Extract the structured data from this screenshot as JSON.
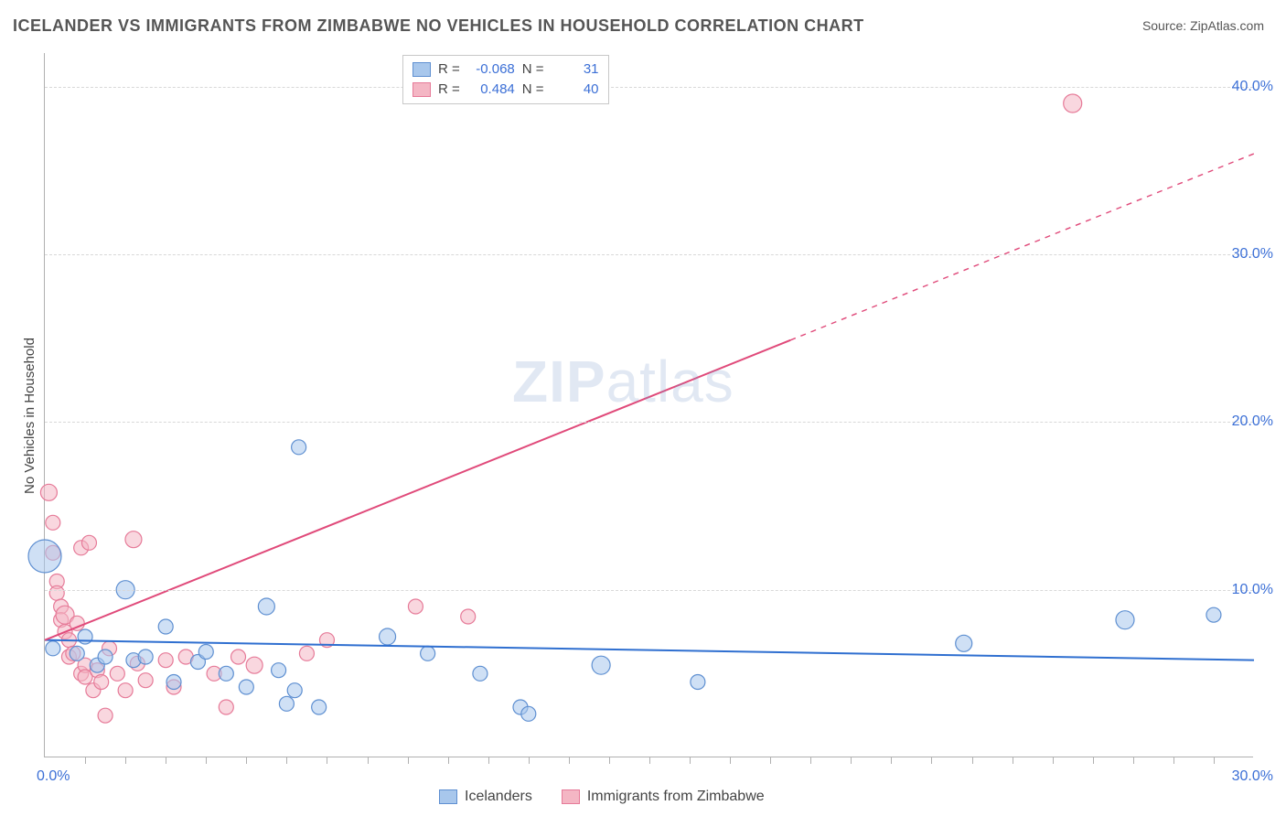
{
  "title": "ICELANDER VS IMMIGRANTS FROM ZIMBABWE NO VEHICLES IN HOUSEHOLD CORRELATION CHART",
  "source": "Source: ZipAtlas.com",
  "ylabel": "No Vehicles in Household",
  "watermark_zip": "ZIP",
  "watermark_atlas": "atlas",
  "chart": {
    "type": "scatter",
    "xlim": [
      0,
      30
    ],
    "ylim": [
      0,
      42
    ],
    "x_tick_first": "0.0%",
    "x_tick_last": "30.0%",
    "x_minor_ticks": [
      1,
      2,
      3,
      4,
      5,
      6,
      7,
      8,
      9,
      10,
      11,
      12,
      13,
      14,
      15,
      16,
      17,
      18,
      19,
      20,
      21,
      22,
      23,
      24,
      25,
      26,
      27,
      28,
      29
    ],
    "y_ticks": [
      {
        "v": 10,
        "label": "10.0%"
      },
      {
        "v": 20,
        "label": "20.0%"
      },
      {
        "v": 30,
        "label": "30.0%"
      },
      {
        "v": 40,
        "label": "40.0%"
      }
    ],
    "series": [
      {
        "name": "Icelanders",
        "color_fill": "#a8c7ec",
        "color_stroke": "#5e8fd1",
        "fill_opacity": 0.55,
        "r_label": "-0.068",
        "n_label": "31",
        "trend": {
          "x1": 0,
          "y1": 7.0,
          "x2": 30,
          "y2": 5.8,
          "color": "#2f6fd0",
          "width": 2
        },
        "points": [
          {
            "x": 0.0,
            "y": 12.0,
            "r": 18
          },
          {
            "x": 0.2,
            "y": 6.5,
            "r": 8
          },
          {
            "x": 0.8,
            "y": 6.2,
            "r": 8
          },
          {
            "x": 1.0,
            "y": 7.2,
            "r": 8
          },
          {
            "x": 1.3,
            "y": 5.5,
            "r": 8
          },
          {
            "x": 1.5,
            "y": 6.0,
            "r": 8
          },
          {
            "x": 2.0,
            "y": 10.0,
            "r": 10
          },
          {
            "x": 2.2,
            "y": 5.8,
            "r": 8
          },
          {
            "x": 2.5,
            "y": 6.0,
            "r": 8
          },
          {
            "x": 3.0,
            "y": 7.8,
            "r": 8
          },
          {
            "x": 3.2,
            "y": 4.5,
            "r": 8
          },
          {
            "x": 3.8,
            "y": 5.7,
            "r": 8
          },
          {
            "x": 4.0,
            "y": 6.3,
            "r": 8
          },
          {
            "x": 4.5,
            "y": 5.0,
            "r": 8
          },
          {
            "x": 5.0,
            "y": 4.2,
            "r": 8
          },
          {
            "x": 5.5,
            "y": 9.0,
            "r": 9
          },
          {
            "x": 5.8,
            "y": 5.2,
            "r": 8
          },
          {
            "x": 6.0,
            "y": 3.2,
            "r": 8
          },
          {
            "x": 6.2,
            "y": 4.0,
            "r": 8
          },
          {
            "x": 6.3,
            "y": 18.5,
            "r": 8
          },
          {
            "x": 6.8,
            "y": 3.0,
            "r": 8
          },
          {
            "x": 8.5,
            "y": 7.2,
            "r": 9
          },
          {
            "x": 9.5,
            "y": 6.2,
            "r": 8
          },
          {
            "x": 10.8,
            "y": 5.0,
            "r": 8
          },
          {
            "x": 11.8,
            "y": 3.0,
            "r": 8
          },
          {
            "x": 12.0,
            "y": 2.6,
            "r": 8
          },
          {
            "x": 13.8,
            "y": 5.5,
            "r": 10
          },
          {
            "x": 16.2,
            "y": 4.5,
            "r": 8
          },
          {
            "x": 22.8,
            "y": 6.8,
            "r": 9
          },
          {
            "x": 26.8,
            "y": 8.2,
            "r": 10
          },
          {
            "x": 29.0,
            "y": 8.5,
            "r": 8
          }
        ]
      },
      {
        "name": "Immigrants from Zimbabwe",
        "color_fill": "#f4b6c4",
        "color_stroke": "#e67a98",
        "fill_opacity": 0.55,
        "r_label": "0.484",
        "n_label": "40",
        "trend": {
          "x1": 0,
          "y1": 7.0,
          "x2": 30,
          "y2": 36.0,
          "solid_until_x": 18.5,
          "color": "#e04a7a",
          "width": 2
        },
        "points": [
          {
            "x": 0.1,
            "y": 15.8,
            "r": 9
          },
          {
            "x": 0.2,
            "y": 14.0,
            "r": 8
          },
          {
            "x": 0.2,
            "y": 12.2,
            "r": 8
          },
          {
            "x": 0.3,
            "y": 10.5,
            "r": 8
          },
          {
            "x": 0.3,
            "y": 9.8,
            "r": 8
          },
          {
            "x": 0.4,
            "y": 9.0,
            "r": 8
          },
          {
            "x": 0.4,
            "y": 8.2,
            "r": 8
          },
          {
            "x": 0.5,
            "y": 8.5,
            "r": 10
          },
          {
            "x": 0.5,
            "y": 7.5,
            "r": 8
          },
          {
            "x": 0.6,
            "y": 7.0,
            "r": 8
          },
          {
            "x": 0.6,
            "y": 6.0,
            "r": 8
          },
          {
            "x": 0.7,
            "y": 6.2,
            "r": 8
          },
          {
            "x": 0.8,
            "y": 8.0,
            "r": 8
          },
          {
            "x": 0.9,
            "y": 12.5,
            "r": 8
          },
          {
            "x": 0.9,
            "y": 5.0,
            "r": 8
          },
          {
            "x": 1.0,
            "y": 5.5,
            "r": 8
          },
          {
            "x": 1.0,
            "y": 4.8,
            "r": 8
          },
          {
            "x": 1.1,
            "y": 12.8,
            "r": 8
          },
          {
            "x": 1.2,
            "y": 4.0,
            "r": 8
          },
          {
            "x": 1.3,
            "y": 5.2,
            "r": 8
          },
          {
            "x": 1.4,
            "y": 4.5,
            "r": 8
          },
          {
            "x": 1.5,
            "y": 2.5,
            "r": 8
          },
          {
            "x": 1.6,
            "y": 6.5,
            "r": 8
          },
          {
            "x": 1.8,
            "y": 5.0,
            "r": 8
          },
          {
            "x": 2.0,
            "y": 4.0,
            "r": 8
          },
          {
            "x": 2.2,
            "y": 13.0,
            "r": 9
          },
          {
            "x": 2.3,
            "y": 5.6,
            "r": 8
          },
          {
            "x": 2.5,
            "y": 4.6,
            "r": 8
          },
          {
            "x": 3.0,
            "y": 5.8,
            "r": 8
          },
          {
            "x": 3.2,
            "y": 4.2,
            "r": 8
          },
          {
            "x": 3.5,
            "y": 6.0,
            "r": 8
          },
          {
            "x": 4.2,
            "y": 5.0,
            "r": 8
          },
          {
            "x": 4.5,
            "y": 3.0,
            "r": 8
          },
          {
            "x": 4.8,
            "y": 6.0,
            "r": 8
          },
          {
            "x": 5.2,
            "y": 5.5,
            "r": 9
          },
          {
            "x": 6.5,
            "y": 6.2,
            "r": 8
          },
          {
            "x": 7.0,
            "y": 7.0,
            "r": 8
          },
          {
            "x": 9.2,
            "y": 9.0,
            "r": 8
          },
          {
            "x": 10.5,
            "y": 8.4,
            "r": 8
          },
          {
            "x": 25.5,
            "y": 39.0,
            "r": 10
          }
        ]
      }
    ]
  },
  "legend_top": {
    "r_prefix": "R =",
    "n_prefix": "N ="
  },
  "legend_bottom": {
    "items": [
      {
        "label": "Icelanders",
        "fill": "#a8c7ec",
        "stroke": "#5e8fd1"
      },
      {
        "label": "Immigrants from Zimbabwe",
        "fill": "#f4b6c4",
        "stroke": "#e67a98"
      }
    ]
  }
}
